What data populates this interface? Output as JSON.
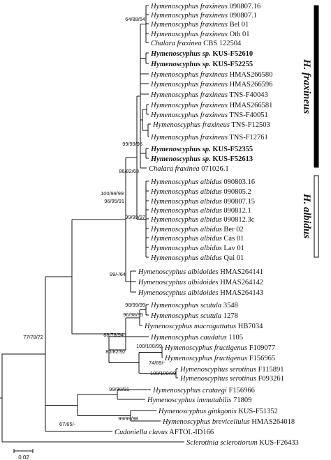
{
  "leaves": [
    {
      "genus": "Hymenoscyphus",
      "epithet": "fraxineus",
      "strain": "090807.16",
      "bold": false
    },
    {
      "genus": "Hymenoscyphus",
      "epithet": "fraxineus",
      "strain": "090807.1",
      "bold": false
    },
    {
      "genus": "Hymenoscyphus",
      "epithet": "fraxineus",
      "strain": "Bel 01",
      "bold": false
    },
    {
      "genus": "Hymenoscyphus",
      "epithet": "fraxineus",
      "strain": "Oth 01",
      "bold": false
    },
    {
      "genus": "Chalara",
      "epithet": "fraxinea",
      "strain": "CBS 122504",
      "bold": false
    },
    {
      "genus": "Hymenoscyphus",
      "epithet": "sp.",
      "strain": "KUS-F52610",
      "bold": true
    },
    {
      "genus": "Hymenoscyphus",
      "epithet": "sp.",
      "strain": "KUS-F52255",
      "bold": true
    },
    {
      "genus": "Hymenoscyphus",
      "epithet": "fraxineus",
      "strain": "HMAS266580",
      "bold": false
    },
    {
      "genus": "Hymenoscyphus",
      "epithet": "fraxineus",
      "strain": "HMAS266596",
      "bold": false
    },
    {
      "genus": "Hymenoscyphus",
      "epithet": "fraxineus",
      "strain": "TNS-F40043",
      "bold": false
    },
    {
      "genus": "Hymenoscyphus",
      "epithet": "fraxineus",
      "strain": "HMAS266581",
      "bold": false
    },
    {
      "genus": "Hymenoscyphus",
      "epithet": "fraxineus",
      "strain": "TNS-F40051",
      "bold": false
    },
    {
      "genus": "Hymenoscyphus",
      "epithet": "fraxineus",
      "strain": "TNS-F12503",
      "bold": false
    },
    {
      "genus": "Hymenoscyphus",
      "epithet": "fraxineus",
      "strain": "TNS-F12761",
      "bold": false
    },
    {
      "genus": "Hymenoscyphus",
      "epithet": "sp.",
      "strain": "KUS-F52355",
      "bold": true
    },
    {
      "genus": "Hymenoscyphus",
      "epithet": "sp.",
      "strain": "KUS-F52613",
      "bold": true
    },
    {
      "genus": "Chalara",
      "epithet": "fraxinea",
      "strain": "071026.1",
      "bold": false
    },
    {
      "genus": "Hymenoscyphus",
      "epithet": "albidus",
      "strain": "090803.16",
      "bold": false
    },
    {
      "genus": "Hymenoscyphus",
      "epithet": "albidus",
      "strain": "090805.2",
      "bold": false
    },
    {
      "genus": "Hymenoscyphus",
      "epithet": "albidus",
      "strain": "090807.15",
      "bold": false
    },
    {
      "genus": "Hymenoscyphus",
      "epithet": "albidus",
      "strain": "090812.1",
      "bold": false
    },
    {
      "genus": "Hymenoscyphus",
      "epithet": "albidus",
      "strain": "090812.3c",
      "bold": false
    },
    {
      "genus": "Hymenoscyphus",
      "epithet": "albidus",
      "strain": "Ber 02",
      "bold": false
    },
    {
      "genus": "Hymenoscyphus",
      "epithet": "albidus",
      "strain": "Cas 01",
      "bold": false
    },
    {
      "genus": "Hymenoscyphus",
      "epithet": "albidus",
      "strain": "Lav 01",
      "bold": false
    },
    {
      "genus": "Hymenoscyphus",
      "epithet": "albidus",
      "strain": "Qui 01",
      "bold": false
    },
    {
      "genus": "Hymenoscyphus",
      "epithet": "albidoides",
      "strain": "HMAS264141",
      "bold": false
    },
    {
      "genus": "Hymenoscyphus",
      "epithet": "albidoides",
      "strain": "HMAS264142",
      "bold": false
    },
    {
      "genus": "Hymenoscyphus",
      "epithet": "albidoides",
      "strain": "HMAS264143",
      "bold": false
    },
    {
      "genus": "Hymenoscyphus",
      "epithet": "scutula",
      "strain": "3548",
      "bold": false
    },
    {
      "genus": "Hymenoscyphus",
      "epithet": "scutula",
      "strain": "1278",
      "bold": false
    },
    {
      "genus": "Hymenoscyphus",
      "epithet": "macroguttatus",
      "strain": "HB7034",
      "bold": false
    },
    {
      "genus": "Hymenoscyphus",
      "epithet": "caudatus",
      "strain": "1105",
      "bold": false
    },
    {
      "genus": "Hymenoscyphus",
      "epithet": "fructigenus",
      "strain": "F109077",
      "bold": false
    },
    {
      "genus": "Hymenoscyphus",
      "epithet": "fructigenus",
      "strain": "F156965",
      "bold": false
    },
    {
      "genus": "Hymenoscyphus",
      "epithet": "serotinus",
      "strain": "F115891",
      "bold": false
    },
    {
      "genus": "Hymenoscyphus",
      "epithet": "serotinus",
      "strain": "F093261",
      "bold": false
    },
    {
      "genus": "Hymenoscyphus",
      "epithet": "crataegi",
      "strain": "F156966",
      "bold": false
    },
    {
      "genus": "Hymenoscyphus",
      "epithet": "immutabilis",
      "strain": "71809",
      "bold": false
    },
    {
      "genus": "Hymenoscyphus",
      "epithet": "ginkgonis",
      "strain": "KUS-F51352",
      "bold": false
    },
    {
      "genus": "Hymenoscyphus",
      "epithet": "brevicellulus",
      "strain": "HMAS264018",
      "bold": false
    },
    {
      "genus": "Cudoniella",
      "epithet": "clavus",
      "strain": "AFTOL-ID166",
      "bold": false
    },
    {
      "genus": "Sclerotinia",
      "epithet": "sclerotiorum",
      "strain": "KUS-F26433",
      "bold": false
    }
  ],
  "support_values": [
    "64/88/64",
    "99/99/95",
    "86/82/63",
    "99/99/97",
    "100/99/99",
    "96/95/91",
    "99/-/64",
    "98/99/99",
    "96/98/95",
    "88/78/94",
    "80/82/92",
    "100/100/99",
    "74/69/-",
    "100/100/99",
    "77/78/72",
    "99/99/91",
    "67/65/-",
    "99/99/98"
  ],
  "clades": [
    {
      "label": "H. fraxineus",
      "bar_color": "#000000"
    },
    {
      "label": "H. albidus",
      "bar_color": "#ffffff"
    }
  ],
  "scale_bar": {
    "label": "0.02"
  }
}
